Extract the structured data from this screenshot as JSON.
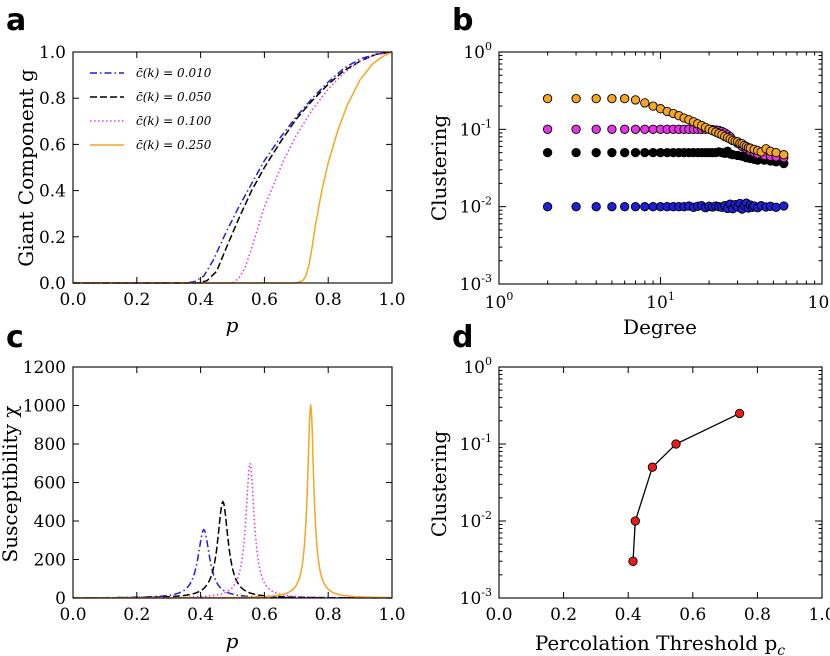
{
  "colors": {
    "blue": "#1f1fd6",
    "black": "#000000",
    "magenta": "#e633e6",
    "orange": "#f5a623",
    "red": "#e81c1c"
  },
  "chart_data": [
    {
      "panel_letter": "a",
      "type": "line",
      "xlabel": "p",
      "ylabel": "Giant Component g",
      "xlim": [
        0.0,
        1.0
      ],
      "ylim": [
        0.0,
        1.0
      ],
      "xticks": [
        "0.0",
        "0.2",
        "0.4",
        "0.6",
        "0.8",
        "1.0"
      ],
      "yticks": [
        "0.0",
        "0.2",
        "0.4",
        "0.6",
        "0.8",
        "1.0"
      ],
      "legend_position": "upper-left",
      "series": [
        {
          "name": "c̄(k) = 0.010",
          "color_key": "blue",
          "dash": "dashdot",
          "x": [
            0.0,
            0.35,
            0.38,
            0.41,
            0.44,
            0.48,
            0.52,
            0.56,
            0.6,
            0.65,
            0.7,
            0.75,
            0.8,
            0.85,
            0.9,
            0.95,
            1.0
          ],
          "y": [
            0.0,
            0.0,
            0.005,
            0.03,
            0.1,
            0.22,
            0.33,
            0.43,
            0.53,
            0.63,
            0.72,
            0.8,
            0.87,
            0.93,
            0.97,
            0.99,
            1.0
          ]
        },
        {
          "name": "c̄(k) = 0.050",
          "color_key": "black",
          "dash": "dashed",
          "x": [
            0.0,
            0.39,
            0.42,
            0.45,
            0.48,
            0.52,
            0.56,
            0.6,
            0.65,
            0.7,
            0.75,
            0.8,
            0.85,
            0.9,
            0.95,
            1.0
          ],
          "y": [
            0.0,
            0.0,
            0.01,
            0.05,
            0.15,
            0.28,
            0.4,
            0.5,
            0.61,
            0.71,
            0.79,
            0.86,
            0.92,
            0.96,
            0.99,
            1.0
          ]
        },
        {
          "name": "c̄(k) = 0.100",
          "color_key": "magenta",
          "dash": "dotted",
          "x": [
            0.0,
            0.5,
            0.52,
            0.54,
            0.56,
            0.58,
            0.6,
            0.63,
            0.66,
            0.7,
            0.75,
            0.8,
            0.85,
            0.9,
            0.95,
            1.0
          ],
          "y": [
            0.0,
            0.0,
            0.02,
            0.07,
            0.15,
            0.24,
            0.33,
            0.43,
            0.53,
            0.64,
            0.75,
            0.84,
            0.91,
            0.96,
            0.99,
            1.0
          ]
        },
        {
          "name": "c̄(k) = 0.250",
          "color_key": "orange",
          "dash": "solid",
          "x": [
            0.0,
            0.7,
            0.72,
            0.73,
            0.74,
            0.75,
            0.76,
            0.78,
            0.8,
            0.83,
            0.86,
            0.9,
            0.94,
            0.97,
            1.0
          ],
          "y": [
            0.0,
            0.0,
            0.01,
            0.03,
            0.08,
            0.16,
            0.25,
            0.4,
            0.52,
            0.66,
            0.77,
            0.88,
            0.95,
            0.98,
            1.0
          ]
        }
      ]
    },
    {
      "panel_letter": "b",
      "type": "scatter",
      "xlabel": "Degree",
      "ylabel": "Clustering",
      "xscale": "log",
      "yscale": "log",
      "xlim": [
        1,
        100
      ],
      "ylim": [
        0.001,
        1
      ],
      "xticks": [
        {
          "base": "10",
          "exp": "0"
        },
        {
          "base": "10",
          "exp": "1"
        },
        {
          "base": "10",
          "exp": "2"
        }
      ],
      "yticks": [
        {
          "base": "10",
          "exp": "-3"
        },
        {
          "base": "10",
          "exp": "-2"
        },
        {
          "base": "10",
          "exp": "-1"
        },
        {
          "base": "10",
          "exp": "0"
        }
      ],
      "series": [
        {
          "color_key": "blue",
          "x": [
            2,
            3,
            4,
            5,
            6,
            7,
            8,
            9,
            10,
            11,
            12,
            13,
            14,
            15,
            16,
            17,
            18,
            19,
            20,
            21,
            22,
            23,
            24,
            25,
            26,
            27,
            28,
            29,
            30,
            31,
            32,
            33,
            34,
            35,
            36,
            37,
            38,
            40,
            42,
            45,
            48,
            52,
            58
          ],
          "y": [
            0.01,
            0.01,
            0.01,
            0.01,
            0.01,
            0.01,
            0.01,
            0.01,
            0.01,
            0.01,
            0.01,
            0.01,
            0.01,
            0.0102,
            0.0098,
            0.0101,
            0.0103,
            0.0097,
            0.0101,
            0.0099,
            0.0102,
            0.01,
            0.0098,
            0.0103,
            0.0095,
            0.0108,
            0.0094,
            0.0106,
            0.0099,
            0.011,
            0.0093,
            0.0104,
            0.0111,
            0.0096,
            0.0105,
            0.0098,
            0.0102,
            0.0097,
            0.0103,
            0.0099,
            0.0101,
            0.0098,
            0.0102
          ]
        },
        {
          "color_key": "black",
          "x": [
            2,
            3,
            4,
            5,
            6,
            7,
            8,
            9,
            10,
            11,
            12,
            13,
            14,
            15,
            16,
            17,
            18,
            19,
            20,
            21,
            22,
            23,
            24,
            25,
            26,
            27,
            28,
            30,
            32,
            34,
            36,
            38,
            40,
            44,
            48,
            52,
            58
          ],
          "y": [
            0.05,
            0.05,
            0.05,
            0.05,
            0.05,
            0.05,
            0.05,
            0.05,
            0.05,
            0.05,
            0.05,
            0.05,
            0.05,
            0.05,
            0.05,
            0.05,
            0.05,
            0.05,
            0.05,
            0.05,
            0.05,
            0.051,
            0.05,
            0.049,
            0.052,
            0.048,
            0.047,
            0.046,
            0.045,
            0.043,
            0.042,
            0.041,
            0.04,
            0.04,
            0.039,
            0.038,
            0.036
          ]
        },
        {
          "color_key": "magenta",
          "x": [
            2,
            3,
            4,
            5,
            6,
            7,
            8,
            9,
            10,
            11,
            12,
            13,
            14,
            15,
            16,
            17,
            18,
            19,
            20,
            21,
            22,
            23,
            24,
            25,
            26,
            27,
            28,
            30,
            32,
            34,
            36,
            38,
            40,
            44,
            48,
            52,
            58
          ],
          "y": [
            0.1,
            0.1,
            0.1,
            0.1,
            0.1,
            0.1,
            0.1,
            0.1,
            0.1,
            0.1,
            0.1,
            0.1,
            0.1,
            0.1,
            0.1,
            0.1,
            0.1,
            0.1,
            0.1,
            0.099,
            0.098,
            0.097,
            0.094,
            0.09,
            0.085,
            0.08,
            0.072,
            0.066,
            0.06,
            0.056,
            0.052,
            0.05,
            0.048,
            0.046,
            0.045,
            0.044,
            0.043
          ]
        },
        {
          "color_key": "orange",
          "x": [
            2,
            3,
            4,
            5,
            6,
            7,
            8,
            9,
            10,
            11,
            12,
            13,
            14,
            15,
            16,
            17,
            18,
            19,
            20,
            21,
            22,
            23,
            24,
            25,
            26,
            27,
            28,
            29,
            30,
            31,
            32,
            33,
            34,
            35,
            36,
            38,
            40,
            42,
            45,
            48,
            52,
            58
          ],
          "y": [
            0.25,
            0.25,
            0.25,
            0.25,
            0.25,
            0.24,
            0.22,
            0.2,
            0.185,
            0.17,
            0.16,
            0.15,
            0.14,
            0.133,
            0.125,
            0.118,
            0.112,
            0.106,
            0.1,
            0.096,
            0.092,
            0.088,
            0.085,
            0.081,
            0.078,
            0.075,
            0.072,
            0.07,
            0.069,
            0.066,
            0.065,
            0.062,
            0.06,
            0.058,
            0.057,
            0.055,
            0.053,
            0.051,
            0.056,
            0.052,
            0.05,
            0.047
          ]
        }
      ]
    },
    {
      "panel_letter": "c",
      "type": "line",
      "xlabel": "p",
      "ylabel": "Susceptibility χ",
      "xlim": [
        0.0,
        1.0
      ],
      "ylim": [
        0,
        1200
      ],
      "xticks": [
        "0.0",
        "0.2",
        "0.4",
        "0.6",
        "0.8",
        "1.0"
      ],
      "yticks": [
        "0",
        "200",
        "400",
        "600",
        "800",
        "1000",
        "1200"
      ],
      "series": [
        {
          "color_key": "blue",
          "dash": "dashdot",
          "peak_x": 0.41,
          "peak_y": 355,
          "width": 0.022
        },
        {
          "color_key": "black",
          "dash": "dashed",
          "peak_x": 0.47,
          "peak_y": 500,
          "width": 0.02
        },
        {
          "color_key": "magenta",
          "dash": "dotted",
          "peak_x": 0.555,
          "peak_y": 700,
          "width": 0.016
        },
        {
          "color_key": "orange",
          "dash": "solid",
          "peak_x": 0.745,
          "peak_y": 1005,
          "width": 0.012
        }
      ]
    },
    {
      "panel_letter": "d",
      "type": "line",
      "xlabel": "Percolation Threshold p",
      "xlabel_subscript": "c",
      "ylabel": "Clustering",
      "xlim": [
        0.0,
        1.0
      ],
      "ylim": [
        0.001,
        1
      ],
      "yscale": "log",
      "xticks": [
        "0.0",
        "0.2",
        "0.4",
        "0.6",
        "0.8",
        "1.0"
      ],
      "yticks": [
        {
          "base": "10",
          "exp": "-3"
        },
        {
          "base": "10",
          "exp": "-2"
        },
        {
          "base": "10",
          "exp": "-1"
        },
        {
          "base": "10",
          "exp": "0"
        }
      ],
      "x": [
        0.415,
        0.422,
        0.475,
        0.548,
        0.745
      ],
      "y": [
        0.003,
        0.01,
        0.05,
        0.1,
        0.25
      ]
    }
  ]
}
